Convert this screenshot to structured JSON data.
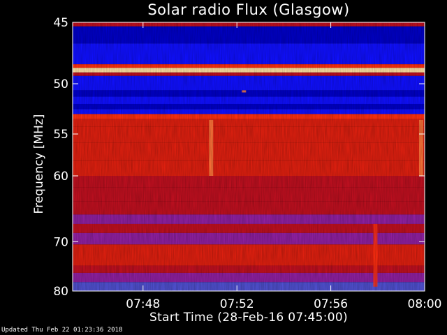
{
  "chart_data": {
    "type": "heatmap",
    "title": "Solar radio Flux (Glasgow)",
    "xlabel": "Start Time (28-Feb-16 07:45:00)",
    "ylabel": "Frequency [MHz]",
    "x_tick_labels": [
      "07:48",
      "07:52",
      "07:56",
      "08:00"
    ],
    "x_tick_values_minutes": [
      3,
      7,
      11,
      15
    ],
    "xlim_minutes": [
      0,
      15
    ],
    "y_tick_labels": [
      "45",
      "50",
      "55",
      "60",
      "70",
      "80"
    ],
    "y_tick_values_mhz": [
      45,
      50,
      55,
      60,
      70,
      80
    ],
    "ylim_mhz": [
      45,
      80
    ],
    "y_scale": "reciprocal",
    "colormap": [
      "#000050",
      "#0000c8",
      "#1010ff",
      "#5050d0",
      "#9020a0",
      "#c01020",
      "#e02010",
      "#ff3010",
      "#ff8040",
      "#ffe0a0"
    ],
    "bands": [
      {
        "f0": 45.0,
        "f1": 45.3,
        "level": 0.55
      },
      {
        "f0": 45.3,
        "f1": 46.6,
        "level": 0.15
      },
      {
        "f0": 46.6,
        "f1": 48.3,
        "level": 0.22
      },
      {
        "f0": 48.3,
        "f1": 48.6,
        "level": 0.75
      },
      {
        "f0": 48.6,
        "f1": 49.0,
        "level": 0.95
      },
      {
        "f0": 49.0,
        "f1": 49.3,
        "level": 0.55
      },
      {
        "f0": 49.3,
        "f1": 50.6,
        "level": 0.22
      },
      {
        "f0": 50.6,
        "f1": 51.2,
        "level": 0.12
      },
      {
        "f0": 51.2,
        "f1": 51.9,
        "level": 0.22
      },
      {
        "f0": 51.9,
        "f1": 52.4,
        "level": 0.14
      },
      {
        "f0": 52.4,
        "f1": 52.9,
        "level": 0.25
      },
      {
        "f0": 52.9,
        "f1": 53.4,
        "level": 0.78
      },
      {
        "f0": 53.4,
        "f1": 54.2,
        "level": 0.62
      },
      {
        "f0": 54.2,
        "f1": 56.0,
        "level": 0.68
      },
      {
        "f0": 56.0,
        "f1": 58.0,
        "level": 0.64
      },
      {
        "f0": 58.0,
        "f1": 60.0,
        "level": 0.66
      },
      {
        "f0": 60.0,
        "f1": 61.5,
        "level": 0.55
      },
      {
        "f0": 61.5,
        "f1": 63.5,
        "level": 0.5
      },
      {
        "f0": 63.5,
        "f1": 65.5,
        "level": 0.58
      },
      {
        "f0": 65.5,
        "f1": 67.0,
        "level": 0.42
      },
      {
        "f0": 67.0,
        "f1": 68.5,
        "level": 0.5
      },
      {
        "f0": 68.5,
        "f1": 70.5,
        "level": 0.46
      },
      {
        "f0": 70.5,
        "f1": 72.0,
        "level": 0.66
      },
      {
        "f0": 72.0,
        "f1": 74.5,
        "level": 0.6
      },
      {
        "f0": 74.5,
        "f1": 76.0,
        "level": 0.56
      },
      {
        "f0": 76.0,
        "f1": 78.0,
        "level": 0.44
      },
      {
        "f0": 78.0,
        "f1": 80.0,
        "level": 0.34
      }
    ],
    "bursts": [
      {
        "t": 5.9,
        "f0": 53.5,
        "f1": 60.0,
        "level": 0.85
      },
      {
        "t": 14.85,
        "f0": 53.5,
        "f1": 60.0,
        "level": 0.85
      },
      {
        "t": 7.3,
        "f0": 50.6,
        "f1": 50.8,
        "level": 0.85
      },
      {
        "t": 12.9,
        "f0": 67.0,
        "f1": 79.0,
        "level": 0.7
      }
    ],
    "footer": "Updated Thu Feb 22 01:23:36 2018"
  }
}
